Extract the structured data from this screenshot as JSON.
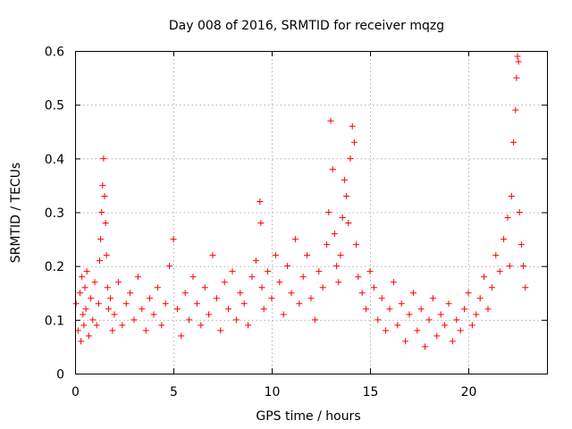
{
  "chart_data": {
    "type": "scatter",
    "title": "Day 008 of 2016, SRMTID for receiver mqzg",
    "xlabel": "GPS time / hours",
    "ylabel": "SRMTID / TECUs",
    "xlim": [
      0,
      24
    ],
    "ylim": [
      0,
      0.6
    ],
    "xticks": [
      0,
      5,
      10,
      15,
      20
    ],
    "xtick_labels": [
      "0",
      "5",
      "10",
      "15",
      "20"
    ],
    "yticks": [
      0,
      0.1,
      0.2,
      0.3,
      0.4,
      0.5,
      0.6
    ],
    "ytick_labels": [
      "0",
      "0.1",
      "0.2",
      "0.3",
      "0.4",
      "0.5",
      "0.6"
    ],
    "grid": true,
    "marker": "+",
    "color": "#ff0000",
    "series": [
      {
        "name": "SRMTID",
        "x": [
          0.05,
          0.15,
          0.25,
          0.3,
          0.35,
          0.4,
          0.45,
          0.5,
          0.55,
          0.6,
          0.7,
          0.8,
          0.9,
          1.0,
          1.1,
          1.2,
          1.25,
          1.3,
          1.35,
          1.4,
          1.45,
          1.5,
          1.55,
          1.6,
          1.65,
          1.7,
          1.8,
          1.9,
          2.0,
          2.2,
          2.4,
          2.6,
          2.8,
          3.0,
          3.2,
          3.4,
          3.6,
          3.8,
          4.0,
          4.2,
          4.4,
          4.6,
          4.8,
          5.0,
          5.2,
          5.4,
          5.6,
          5.8,
          6.0,
          6.2,
          6.4,
          6.6,
          6.8,
          7.0,
          7.2,
          7.4,
          7.6,
          7.8,
          8.0,
          8.2,
          8.4,
          8.6,
          8.8,
          9.0,
          9.2,
          9.4,
          9.45,
          9.5,
          9.6,
          9.8,
          10.0,
          10.2,
          10.4,
          10.6,
          10.8,
          11.0,
          11.2,
          11.4,
          11.6,
          11.8,
          12.0,
          12.2,
          12.4,
          12.6,
          12.8,
          12.9,
          13.0,
          13.1,
          13.2,
          13.3,
          13.4,
          13.5,
          13.6,
          13.7,
          13.8,
          13.9,
          14.0,
          14.1,
          14.2,
          14.3,
          14.4,
          14.6,
          14.8,
          15.0,
          15.2,
          15.4,
          15.6,
          15.8,
          16.0,
          16.2,
          16.4,
          16.6,
          16.8,
          17.0,
          17.2,
          17.4,
          17.6,
          17.8,
          18.0,
          18.2,
          18.4,
          18.6,
          18.8,
          19.0,
          19.2,
          19.4,
          19.6,
          19.8,
          20.0,
          20.2,
          20.4,
          20.6,
          20.8,
          21.0,
          21.2,
          21.4,
          21.6,
          21.8,
          22.0,
          22.1,
          22.2,
          22.3,
          22.4,
          22.45,
          22.5,
          22.55,
          22.6,
          22.7,
          22.8,
          22.9
        ],
        "y": [
          0.13,
          0.08,
          0.15,
          0.06,
          0.18,
          0.11,
          0.09,
          0.16,
          0.12,
          0.19,
          0.07,
          0.14,
          0.1,
          0.17,
          0.09,
          0.13,
          0.21,
          0.25,
          0.3,
          0.35,
          0.4,
          0.33,
          0.28,
          0.22,
          0.16,
          0.12,
          0.14,
          0.08,
          0.11,
          0.17,
          0.09,
          0.13,
          0.15,
          0.1,
          0.18,
          0.12,
          0.08,
          0.14,
          0.11,
          0.16,
          0.09,
          0.13,
          0.2,
          0.25,
          0.12,
          0.07,
          0.15,
          0.1,
          0.18,
          0.13,
          0.09,
          0.16,
          0.11,
          0.22,
          0.14,
          0.08,
          0.17,
          0.12,
          0.19,
          0.1,
          0.15,
          0.13,
          0.09,
          0.18,
          0.21,
          0.32,
          0.28,
          0.16,
          0.12,
          0.19,
          0.14,
          0.22,
          0.17,
          0.11,
          0.2,
          0.15,
          0.25,
          0.13,
          0.18,
          0.22,
          0.14,
          0.1,
          0.19,
          0.16,
          0.24,
          0.3,
          0.47,
          0.38,
          0.26,
          0.2,
          0.17,
          0.22,
          0.29,
          0.36,
          0.33,
          0.28,
          0.4,
          0.46,
          0.43,
          0.24,
          0.18,
          0.15,
          0.12,
          0.19,
          0.16,
          0.1,
          0.14,
          0.08,
          0.12,
          0.17,
          0.09,
          0.13,
          0.06,
          0.11,
          0.15,
          0.08,
          0.12,
          0.05,
          0.1,
          0.14,
          0.07,
          0.11,
          0.09,
          0.13,
          0.06,
          0.1,
          0.08,
          0.12,
          0.15,
          0.09,
          0.11,
          0.14,
          0.18,
          0.12,
          0.16,
          0.22,
          0.19,
          0.25,
          0.29,
          0.2,
          0.33,
          0.43,
          0.49,
          0.55,
          0.59,
          0.58,
          0.3,
          0.24,
          0.2,
          0.16
        ]
      }
    ]
  }
}
